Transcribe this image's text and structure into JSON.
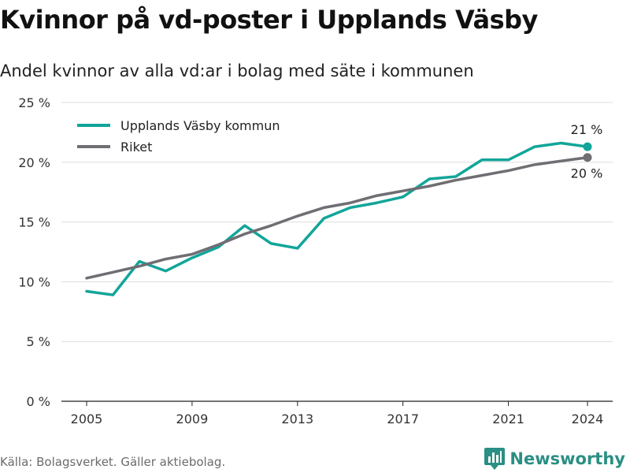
{
  "header": {
    "title": "Kvinnor på vd-poster i Upplands Väsby",
    "subtitle": "Andel kvinnor av alla vd:ar i bolag med säte i kommunen"
  },
  "footer": {
    "source": "Källa: Bolagsverket. Gäller aktiebolag.",
    "brand": "Newsworthy"
  },
  "colors": {
    "kommun": "#12a59a",
    "riket": "#706d73",
    "grid": "#dddddd"
  },
  "icons": {
    "brand_logo": "bar-chart-logo-icon"
  },
  "chart_data": {
    "type": "line",
    "x": [
      2005,
      2006,
      2007,
      2008,
      2009,
      2010,
      2011,
      2012,
      2013,
      2014,
      2015,
      2016,
      2017,
      2018,
      2019,
      2020,
      2021,
      2022,
      2023,
      2024
    ],
    "series": [
      {
        "name": "Upplands Väsby kommun",
        "values": [
          9.2,
          8.9,
          11.7,
          10.9,
          12.0,
          12.9,
          14.7,
          13.2,
          12.8,
          15.3,
          16.2,
          16.6,
          17.1,
          18.6,
          18.8,
          20.2,
          20.2,
          21.3,
          21.6,
          21.3
        ],
        "end_label": "21 %"
      },
      {
        "name": "Riket",
        "values": [
          10.3,
          10.8,
          11.3,
          11.9,
          12.3,
          13.1,
          14.0,
          14.7,
          15.5,
          16.2,
          16.6,
          17.2,
          17.6,
          18.0,
          18.5,
          18.9,
          19.3,
          19.8,
          20.1,
          20.4
        ],
        "end_label": "20 %"
      }
    ],
    "x_ticks": [
      2005,
      2009,
      2013,
      2017,
      2021,
      2024
    ],
    "y_ticks": [
      {
        "value": 0,
        "label": "0 %"
      },
      {
        "value": 5,
        "label": "5 %"
      },
      {
        "value": 10,
        "label": "10 %"
      },
      {
        "value": 15,
        "label": "15 %"
      },
      {
        "value": 20,
        "label": "20 %"
      },
      {
        "value": 25,
        "label": "25 %"
      }
    ],
    "xlim": [
      2005,
      2024
    ],
    "ylim": [
      0,
      25
    ],
    "grid": true,
    "legend_position": "top-left"
  }
}
